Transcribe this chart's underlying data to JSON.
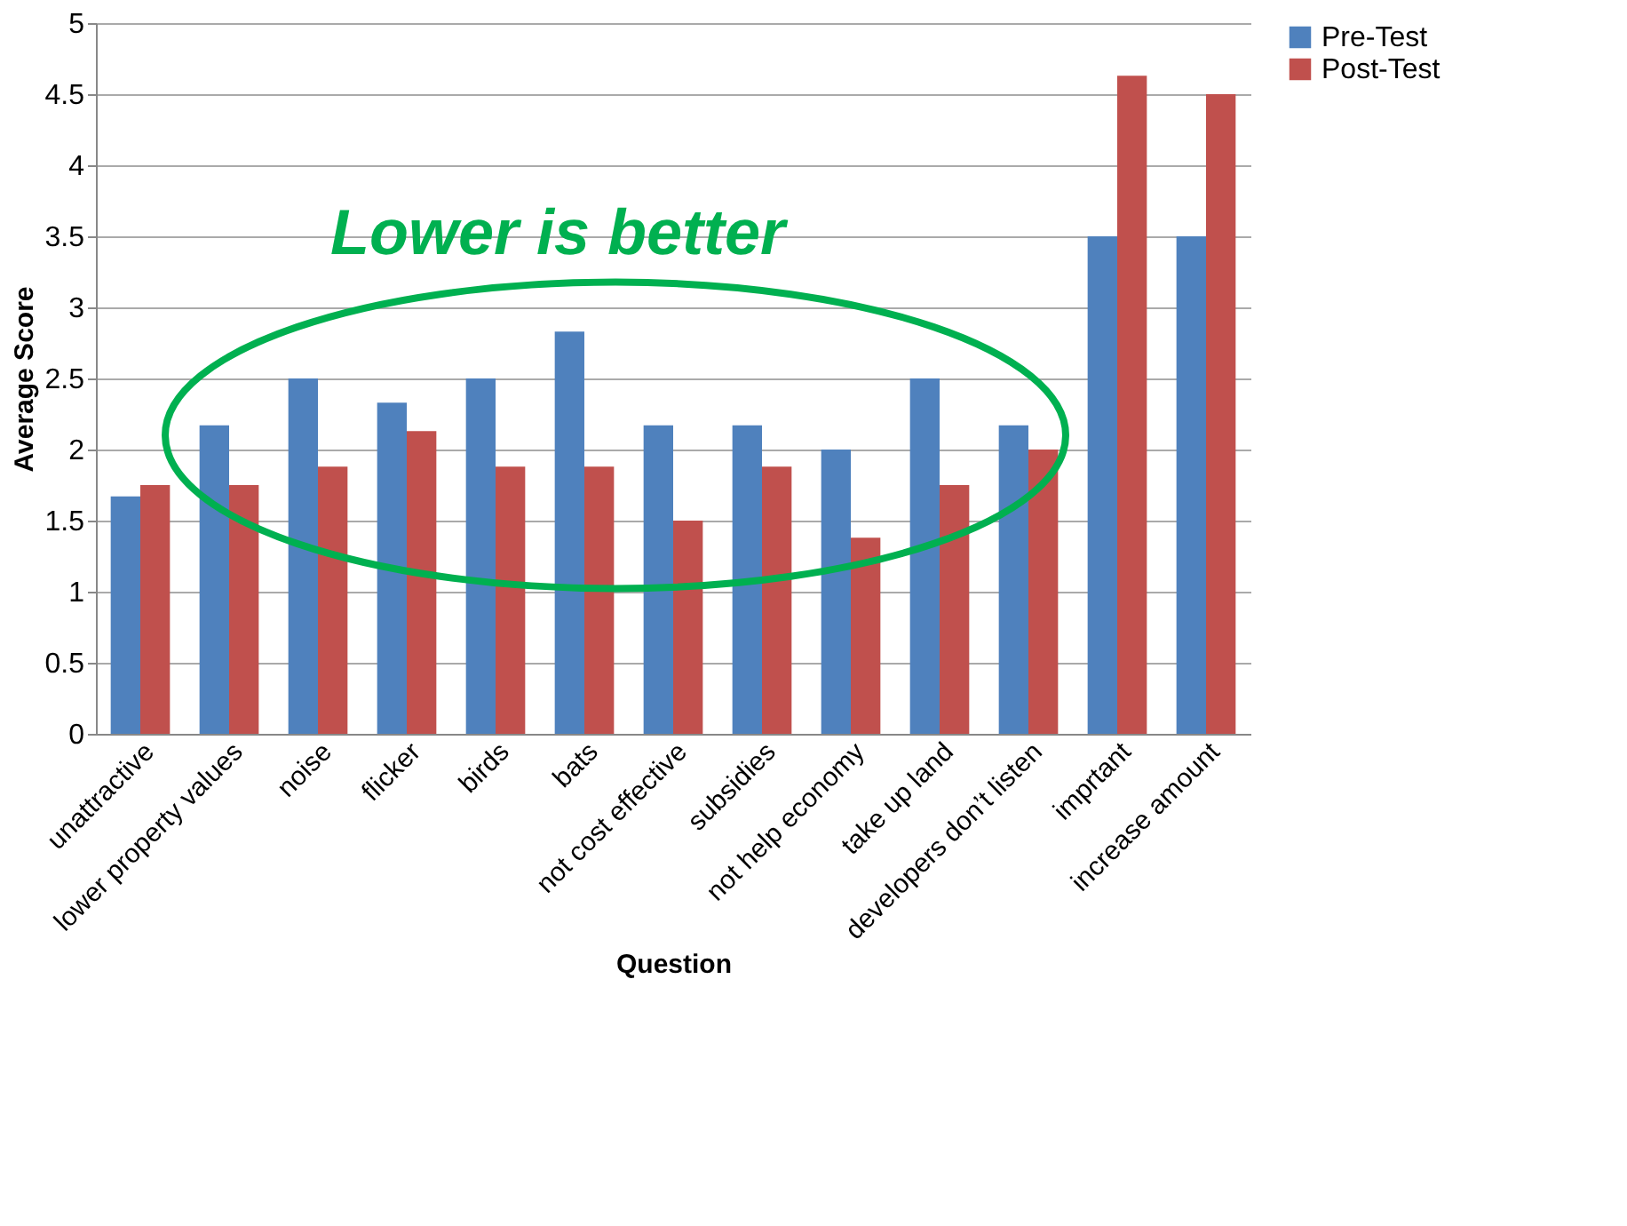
{
  "chart_data": {
    "type": "bar",
    "xlabel": "Question",
    "ylabel": "Average Score",
    "categories": [
      "unattractive",
      "lower property values",
      "noise",
      "flicker",
      "birds",
      "bats",
      "not cost effective",
      "subsidies",
      "not help economy",
      "take up land",
      "developers don’t listen",
      "imprtant",
      "increase amount"
    ],
    "series": [
      {
        "name": "Pre-Test",
        "color": "#4f81bd",
        "values": [
          1.67,
          2.17,
          2.5,
          2.33,
          2.5,
          2.83,
          2.17,
          2.17,
          2.0,
          2.5,
          2.17,
          3.5,
          3.5
        ]
      },
      {
        "name": "Post-Test",
        "color": "#c0504d",
        "values": [
          1.75,
          1.75,
          1.88,
          2.13,
          1.88,
          1.88,
          1.5,
          1.88,
          1.38,
          1.75,
          2.0,
          4.63,
          4.5
        ]
      }
    ],
    "ylim": [
      0,
      5
    ],
    "yticks": [
      0,
      0.5,
      1,
      1.5,
      2,
      2.5,
      3,
      3.5,
      4,
      4.5,
      5
    ],
    "grid": "y",
    "legend": "right",
    "annotations": [
      "Lower is better"
    ]
  }
}
